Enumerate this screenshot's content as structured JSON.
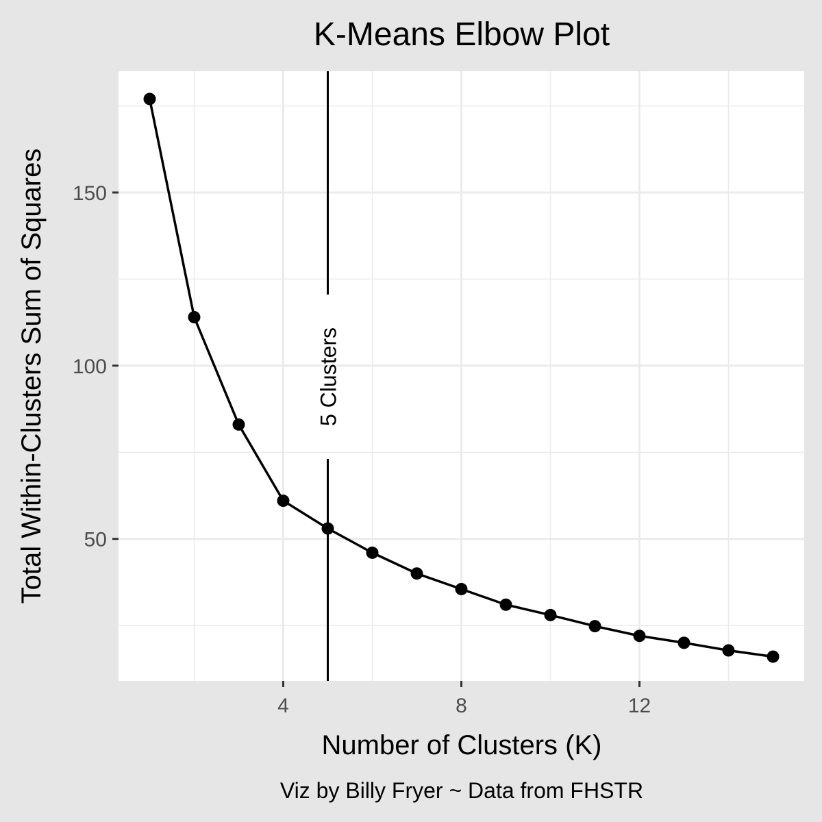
{
  "chart_data": {
    "type": "line",
    "title": "K-Means Elbow Plot",
    "xlabel": "Number of Clusters (K)",
    "ylabel": "Total Within-Clusters Sum of Squares",
    "caption": "Viz by Billy Fryer ~ Data from FHSTR",
    "x": [
      1,
      2,
      3,
      4,
      5,
      6,
      7,
      8,
      9,
      10,
      11,
      12,
      13,
      14,
      15
    ],
    "series": [
      {
        "values": [
          177,
          114,
          83,
          61,
          53,
          46,
          40,
          35.5,
          31,
          28,
          24.8,
          22,
          20,
          17.8,
          16
        ]
      }
    ],
    "xlim": [
      0.3,
      15.7
    ],
    "ylim": [
      9,
      185
    ],
    "xticks": [
      4,
      8,
      12
    ],
    "yticks": [
      50,
      100,
      150
    ],
    "xticks_labels": [
      "4",
      "8",
      "12"
    ],
    "yticks_labels": [
      "50",
      "100",
      "150"
    ],
    "grid": true,
    "line_color": "#000000",
    "panel_background": "#ffffff",
    "background": "#e6e6e6",
    "grid_color": "#ebebeb",
    "annotation": {
      "x": 5,
      "label": "5 Clusters"
    }
  }
}
